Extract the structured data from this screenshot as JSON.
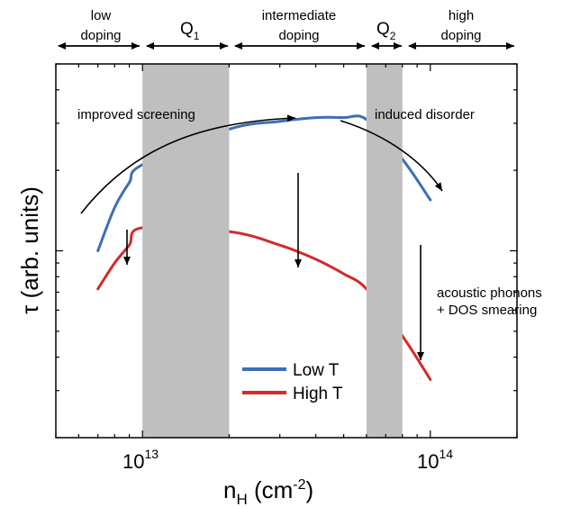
{
  "chart_data": {
    "type": "line",
    "xscale": "log",
    "yscale": "log",
    "xlim": [
      5000000000000.0,
      200000000000000.0
    ],
    "ylim": [
      0.2,
      5
    ],
    "xlabel": {
      "main": "n",
      "sub": "H",
      "unit_open": " (cm",
      "unit_sup": "-2",
      "unit_close": ")"
    },
    "ylabel": "τ (arb. units)",
    "x_ticks": [
      {
        "value": 10000000000000.0,
        "base": "10",
        "exp": "13"
      },
      {
        "value": 100000000000000.0,
        "base": "10",
        "exp": "14"
      }
    ],
    "series": [
      {
        "name": "Low T",
        "color": "#3b6fb6",
        "x": [
          7000000000000.0,
          8000000000000.0,
          9000000000000.0,
          10000000000000.0,
          20000000000000.0,
          30000000000000.0,
          40000000000000.0,
          50000000000000.0,
          60000000000000.0,
          80000000000000.0,
          100000000000000.0
        ],
        "y": [
          1.0,
          1.45,
          1.8,
          2.1,
          2.85,
          3.05,
          3.15,
          3.15,
          3.1,
          2.2,
          1.55
        ]
      },
      {
        "name": "High T",
        "color": "#d42a2a",
        "x": [
          7000000000000.0,
          8000000000000.0,
          9000000000000.0,
          10000000000000.0,
          20000000000000.0,
          30000000000000.0,
          40000000000000.0,
          50000000000000.0,
          60000000000000.0,
          80000000000000.0,
          100000000000000.0
        ],
        "y": [
          0.72,
          0.9,
          1.05,
          1.22,
          1.18,
          1.05,
          0.93,
          0.82,
          0.72,
          0.48,
          0.33
        ]
      }
    ],
    "shaded_regions": [
      {
        "label": "Q",
        "sub": "1",
        "x": [
          10000000000000.0,
          20000000000000.0
        ]
      },
      {
        "label": "Q",
        "sub": "2",
        "x": [
          60000000000000.0,
          80000000000000.0
        ]
      }
    ],
    "regimes": [
      {
        "text": [
          "low",
          "doping"
        ],
        "x": [
          5000000000000.0,
          10000000000000.0
        ]
      },
      {
        "text": [
          "intermediate",
          "doping"
        ],
        "x": [
          20000000000000.0,
          60000000000000.0
        ]
      },
      {
        "text": [
          "high",
          "doping"
        ],
        "x": [
          80000000000000.0,
          200000000000000.0
        ]
      }
    ],
    "annotations": [
      {
        "text": [
          "improved screening"
        ]
      },
      {
        "text": [
          "induced disorder"
        ]
      },
      {
        "text": [
          "acoustic phonons",
          "+ DOS smearing"
        ]
      }
    ],
    "grid": false,
    "legend_position": "bottom-center"
  }
}
